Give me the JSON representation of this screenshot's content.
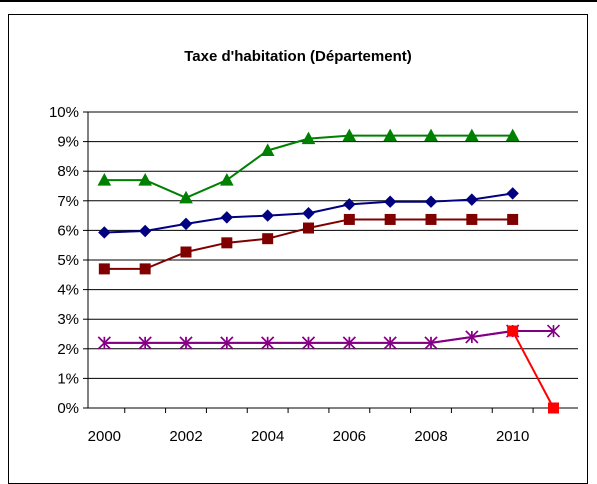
{
  "chart_data": {
    "type": "line",
    "title": "Taxe d'habitation (Département)",
    "xlabel": "",
    "ylabel": "",
    "x_ticks": [
      "2000",
      "2002",
      "2004",
      "2006",
      "2008",
      "2010"
    ],
    "y_ticks": [
      "0%",
      "1%",
      "2%",
      "3%",
      "4%",
      "5%",
      "6%",
      "7%",
      "8%",
      "9%",
      "10%"
    ],
    "xlim": [
      1999.6,
      2011.6
    ],
    "ylim": [
      0,
      10
    ],
    "grid": true,
    "legend": "none",
    "series": [
      {
        "color": "#008000",
        "marker": "triangle",
        "x": [
          2000,
          2001,
          2002,
          2003,
          2004,
          2005,
          2006,
          2007,
          2008,
          2009,
          2010
        ],
        "values": [
          7.7,
          7.7,
          7.1,
          7.7,
          8.7,
          9.1,
          9.2,
          9.2,
          9.2,
          9.2,
          9.2
        ]
      },
      {
        "color": "#000080",
        "marker": "diamond",
        "x": [
          2000,
          2001,
          2002,
          2003,
          2004,
          2005,
          2006,
          2007,
          2008,
          2009,
          2010
        ],
        "values": [
          5.93,
          5.98,
          6.22,
          6.44,
          6.5,
          6.58,
          6.88,
          6.97,
          6.97,
          7.04,
          7.25
        ]
      },
      {
        "color": "#800000",
        "marker": "square",
        "x": [
          2000,
          2001,
          2002,
          2003,
          2004,
          2005,
          2006,
          2007,
          2008,
          2009,
          2010
        ],
        "values": [
          4.7,
          4.7,
          5.27,
          5.58,
          5.72,
          6.08,
          6.37,
          6.37,
          6.37,
          6.37,
          6.37
        ]
      },
      {
        "color": "#ff00ff",
        "marker": "asterisk",
        "x": [
          2000,
          2001,
          2002,
          2003,
          2004,
          2005,
          2006,
          2007,
          2008,
          2009,
          2010
        ],
        "values": [
          2.2,
          2.2,
          2.2,
          2.2,
          2.2,
          2.2,
          2.2,
          2.2,
          2.2,
          2.4,
          2.6
        ]
      },
      {
        "color": "#800080",
        "marker": "star",
        "x": [
          2000,
          2001,
          2002,
          2003,
          2004,
          2005,
          2006,
          2007,
          2008,
          2009,
          2010,
          2011
        ],
        "values": [
          2.2,
          2.2,
          2.2,
          2.2,
          2.2,
          2.2,
          2.2,
          2.2,
          2.2,
          2.4,
          2.6,
          2.6
        ]
      },
      {
        "color": "#ff0000",
        "marker": "square",
        "x": [
          2010,
          2011
        ],
        "values": [
          2.6,
          0
        ]
      }
    ]
  }
}
